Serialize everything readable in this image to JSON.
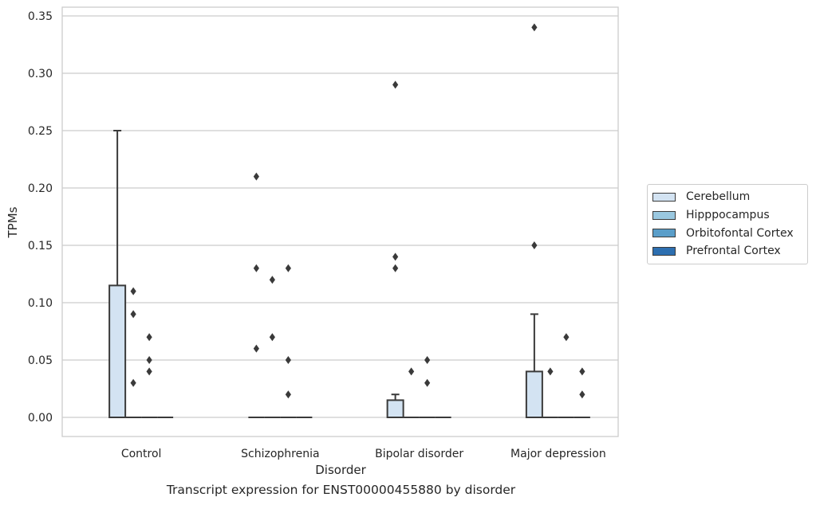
{
  "caption": "Transcript expression for ENST00000455880 by disorder",
  "chart_data": {
    "type": "box",
    "title": "",
    "xlabel": "Disorder",
    "ylabel": "TPMs",
    "ylim": [
      -0.017,
      0.358
    ],
    "yticks": [
      "0.00",
      "0.05",
      "0.10",
      "0.15",
      "0.20",
      "0.25",
      "0.30",
      "0.35"
    ],
    "ytick_values": [
      0,
      0.05,
      0.1,
      0.15,
      0.2,
      0.25,
      0.3,
      0.35
    ],
    "grid": true,
    "legend_position": "right",
    "categories": [
      "Control",
      "Schizophrenia",
      "Bipolar disorder",
      "Major depression"
    ],
    "series": [
      {
        "name": "Cerebellum",
        "color": "#d3e3f2",
        "boxes": [
          {
            "q1": 0,
            "median": 0,
            "q3": 0.115,
            "whisker_low": 0,
            "whisker_high": 0.25,
            "outliers": []
          },
          {
            "q1": 0,
            "median": 0,
            "q3": 0,
            "whisker_low": 0,
            "whisker_high": 0,
            "outliers": [
              0.21,
              0.13,
              0.06
            ]
          },
          {
            "q1": 0,
            "median": 0,
            "q3": 0.015,
            "whisker_low": 0,
            "whisker_high": 0.02,
            "outliers": [
              0.29,
              0.14,
              0.13
            ]
          },
          {
            "q1": 0,
            "median": 0,
            "q3": 0.04,
            "whisker_low": 0,
            "whisker_high": 0.09,
            "outliers": [
              0.34,
              0.15
            ]
          }
        ]
      },
      {
        "name": "Hipppocampus",
        "color": "#9ac8e0",
        "boxes": [
          {
            "q1": 0,
            "median": 0,
            "q3": 0,
            "whisker_low": 0,
            "whisker_high": 0,
            "outliers": [
              0.11,
              0.09,
              0.03
            ]
          },
          {
            "q1": 0,
            "median": 0,
            "q3": 0,
            "whisker_low": 0,
            "whisker_high": 0,
            "outliers": [
              0.12,
              0.07
            ]
          },
          {
            "q1": 0,
            "median": 0,
            "q3": 0,
            "whisker_low": 0,
            "whisker_high": 0,
            "outliers": [
              0.04
            ]
          },
          {
            "q1": 0,
            "median": 0,
            "q3": 0,
            "whisker_low": 0,
            "whisker_high": 0,
            "outliers": [
              0.04
            ]
          }
        ]
      },
      {
        "name": "Orbitofontal Cortex",
        "color": "#5a9ec9",
        "boxes": [
          {
            "q1": 0,
            "median": 0,
            "q3": 0,
            "whisker_low": 0,
            "whisker_high": 0,
            "outliers": [
              0.07,
              0.05,
              0.04
            ]
          },
          {
            "q1": 0,
            "median": 0,
            "q3": 0,
            "whisker_low": 0,
            "whisker_high": 0,
            "outliers": [
              0.13,
              0.05,
              0.02
            ]
          },
          {
            "q1": 0,
            "median": 0,
            "q3": 0,
            "whisker_low": 0,
            "whisker_high": 0,
            "outliers": [
              0.05,
              0.03
            ]
          },
          {
            "q1": 0,
            "median": 0,
            "q3": 0,
            "whisker_low": 0,
            "whisker_high": 0,
            "outliers": [
              0.07
            ]
          }
        ]
      },
      {
        "name": "Prefrontal Cortex",
        "color": "#2d6fb0",
        "boxes": [
          {
            "q1": 0,
            "median": 0,
            "q3": 0,
            "whisker_low": 0,
            "whisker_high": 0,
            "outliers": []
          },
          {
            "q1": 0,
            "median": 0,
            "q3": 0,
            "whisker_low": 0,
            "whisker_high": 0,
            "outliers": []
          },
          {
            "q1": 0,
            "median": 0,
            "q3": 0,
            "whisker_low": 0,
            "whisker_high": 0,
            "outliers": []
          },
          {
            "q1": 0,
            "median": 0,
            "q3": 0,
            "whisker_low": 0,
            "whisker_high": 0,
            "outliers": [
              0.04,
              0.02
            ]
          }
        ]
      }
    ]
  }
}
